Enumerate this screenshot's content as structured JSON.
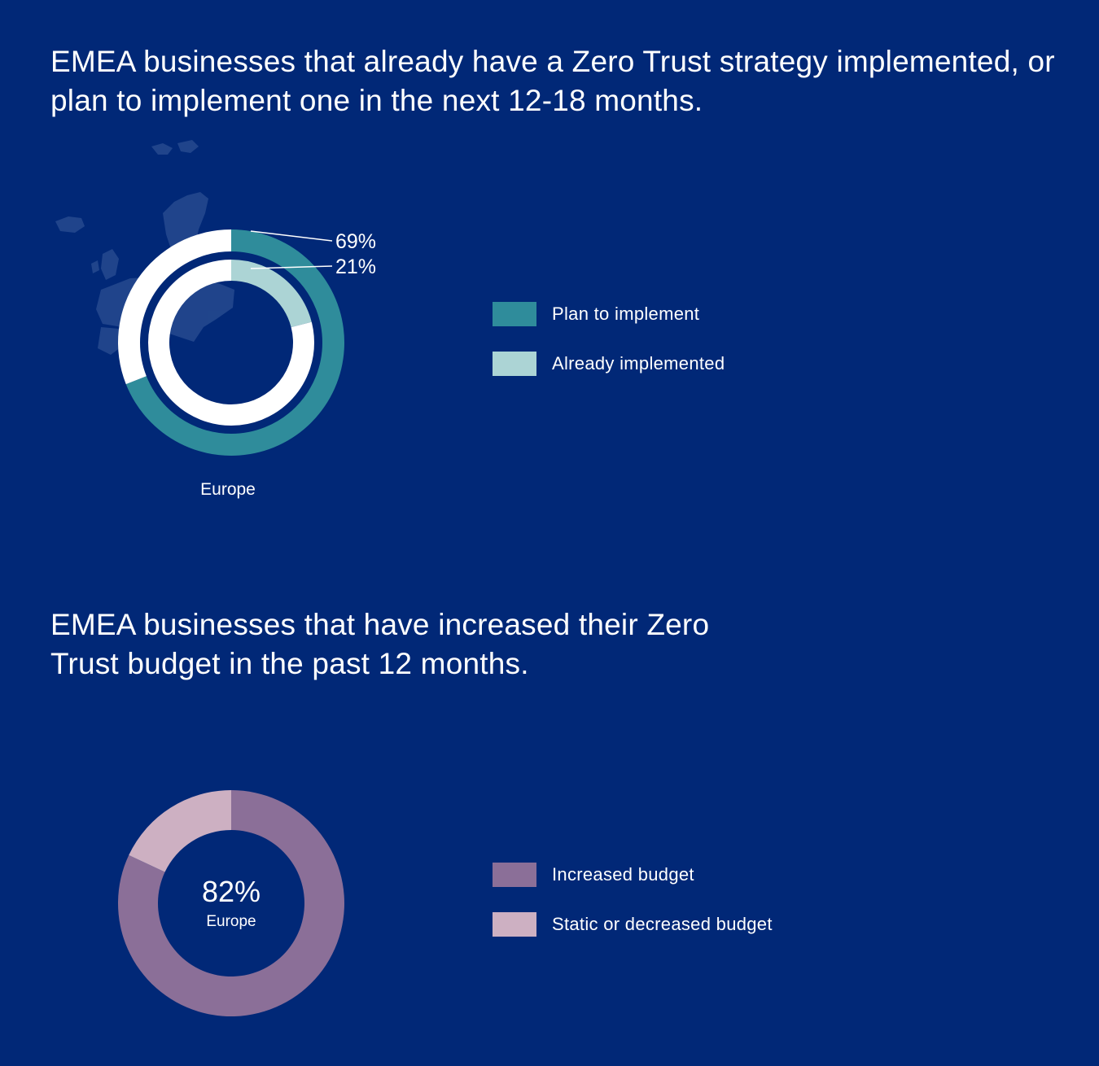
{
  "colors": {
    "background": "#012877",
    "plan": "#2f8c9b",
    "already": "#acd4d5",
    "outer_remainder": "#ffffff",
    "increased": "#8b6f98",
    "static": "#cdb0c2",
    "map": "#3a5c9c"
  },
  "chart_data": [
    {
      "type": "pie",
      "variant": "double-donut",
      "title": "EMEA businesses that already have a Zero Trust strategy implemented, or plan to implement one in the next 12-18 months.",
      "center_label": "Europe",
      "rings": [
        {
          "name": "Plan to implement",
          "value": 69,
          "label": "69%",
          "color": "#2f8c9b",
          "remainder_color": "#ffffff"
        },
        {
          "name": "Already implemented",
          "value": 21,
          "label": "21%",
          "color": "#acd4d5",
          "remainder_color": "#ffffff"
        }
      ],
      "legend": [
        {
          "label": "Plan to implement",
          "color": "#2f8c9b"
        },
        {
          "label": "Already implemented",
          "color": "#acd4d5"
        }
      ],
      "legend_position": "right",
      "background_icon": "europe-map-icon"
    },
    {
      "type": "pie",
      "variant": "donut",
      "title": "EMEA businesses that have increased their Zero Trust budget in the past 12 months.",
      "center_value": "82%",
      "center_label": "Europe",
      "slices": [
        {
          "name": "Increased budget",
          "value": 82,
          "color": "#8b6f98"
        },
        {
          "name": "Static or decreased budget",
          "value": 18,
          "color": "#cdb0c2"
        }
      ],
      "legend": [
        {
          "label": "Increased budget",
          "color": "#8b6f98"
        },
        {
          "label": "Static or decreased budget",
          "color": "#cdb0c2"
        }
      ],
      "legend_position": "right"
    }
  ]
}
